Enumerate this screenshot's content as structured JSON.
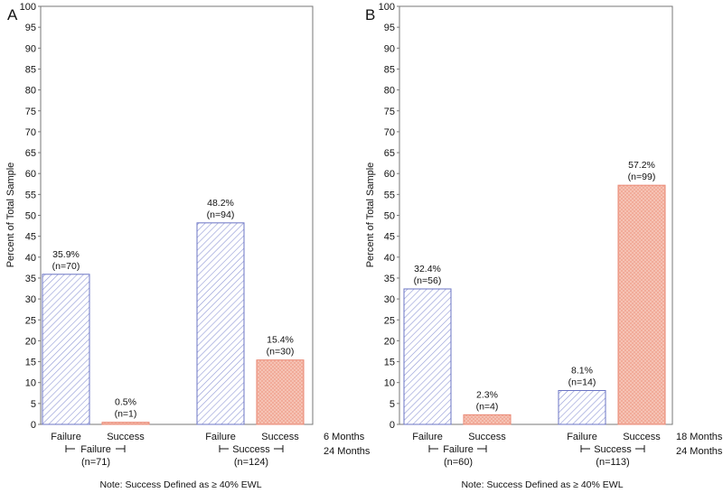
{
  "chart_data": [
    {
      "panel": "A",
      "type": "bar",
      "ylabel": "Percent of Total Sample",
      "ylim": [
        0,
        100
      ],
      "yticks": [
        0,
        5,
        10,
        15,
        20,
        25,
        30,
        35,
        40,
        45,
        50,
        55,
        60,
        65,
        70,
        75,
        80,
        85,
        90,
        95,
        100
      ],
      "categories": [
        "Failure",
        "Success",
        "Failure",
        "Success"
      ],
      "values": [
        35.9,
        0.5,
        48.2,
        15.4
      ],
      "labels": [
        "35.9%",
        "0.5%",
        "48.2%",
        "15.4%"
      ],
      "counts": [
        "(n=70)",
        "(n=1)",
        "(n=94)",
        "(n=30)"
      ],
      "bar_outcome": [
        "failure",
        "success",
        "failure",
        "success"
      ],
      "groups": [
        {
          "label": "Failure",
          "n": "(n=71)"
        },
        {
          "label": "Success",
          "n": "(n=124)"
        }
      ],
      "row_label_1": "6 Months",
      "row_label_2": "24 Months",
      "note": "Note:  Success Defined as ≥ 40% EWL"
    },
    {
      "panel": "B",
      "type": "bar",
      "ylabel": "Percent of Total Sample",
      "ylim": [
        0,
        100
      ],
      "yticks": [
        0,
        5,
        10,
        15,
        20,
        25,
        30,
        35,
        40,
        45,
        50,
        55,
        60,
        65,
        70,
        75,
        80,
        85,
        90,
        95,
        100
      ],
      "categories": [
        "Failure",
        "Success",
        "Failure",
        "Success"
      ],
      "values": [
        32.4,
        2.3,
        8.1,
        57.2
      ],
      "labels": [
        "32.4%",
        "2.3%",
        "8.1%",
        "57.2%"
      ],
      "counts": [
        "(n=56)",
        "(n=4)",
        "(n=14)",
        "(n=99)"
      ],
      "bar_outcome": [
        "failure",
        "success",
        "failure",
        "success"
      ],
      "groups": [
        {
          "label": "Failure",
          "n": "(n=60)"
        },
        {
          "label": "Success",
          "n": "(n=113)"
        }
      ],
      "row_label_1": "18 Months",
      "row_label_2": "24 Months",
      "note": "Note:  Success Defined as ≥ 40% EWL"
    }
  ],
  "colors": {
    "failure_stroke": "#6b74c4",
    "failure_hatch": "#8f97d6",
    "success_stroke": "#e98773",
    "success_fill": "#f7c9bc",
    "success_hatch": "#f0a592",
    "axis": "#777777"
  }
}
